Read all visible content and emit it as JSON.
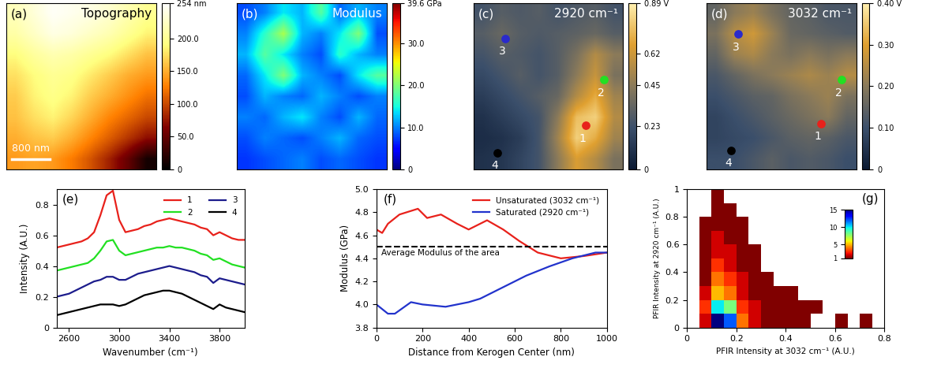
{
  "chart_data": [
    {
      "type": "heatmap",
      "panel": "(a)",
      "title": "Topography",
      "scale_bar": "800 nm",
      "cells": [
        [
          220,
          235,
          250,
          245,
          240,
          230,
          215,
          200
        ],
        [
          210,
          225,
          240,
          235,
          225,
          215,
          200,
          185
        ],
        [
          190,
          205,
          215,
          210,
          200,
          190,
          175,
          160
        ],
        [
          175,
          190,
          200,
          195,
          180,
          165,
          150,
          140
        ],
        [
          165,
          185,
          195,
          185,
          165,
          150,
          135,
          120
        ],
        [
          160,
          175,
          185,
          170,
          150,
          130,
          115,
          100
        ],
        [
          150,
          160,
          165,
          150,
          130,
          110,
          90,
          70
        ],
        [
          140,
          145,
          140,
          125,
          105,
          80,
          50,
          10
        ]
      ],
      "colorbar": {
        "range": [
          0,
          254
        ],
        "ticks": [
          0,
          {
            "value": 50,
            "label": "50.0"
          },
          {
            "value": 100,
            "label": "100.0"
          },
          {
            "value": 150,
            "label": "150.0"
          },
          {
            "value": 200,
            "label": "200.0"
          },
          {
            "value": 254,
            "label": "254 nm"
          }
        ]
      }
    },
    {
      "type": "heatmap",
      "panel": "(b)",
      "title": "Modulus",
      "cells": [
        [
          8,
          10,
          14,
          12,
          18,
          9,
          12,
          10
        ],
        [
          10,
          16,
          22,
          12,
          10,
          14,
          20,
          8
        ],
        [
          12,
          18,
          14,
          10,
          8,
          16,
          12,
          10
        ],
        [
          9,
          14,
          20,
          12,
          10,
          8,
          14,
          18
        ],
        [
          8,
          12,
          10,
          9,
          12,
          10,
          8,
          10
        ],
        [
          10,
          9,
          12,
          14,
          10,
          8,
          12,
          9
        ],
        [
          8,
          10,
          9,
          8,
          10,
          12,
          9,
          8
        ],
        [
          7,
          8,
          9,
          10,
          8,
          9,
          8,
          7
        ]
      ],
      "colorbar": {
        "range": [
          0,
          39.6
        ],
        "ticks": [
          0,
          {
            "value": 10,
            "label": "10.0"
          },
          {
            "value": 20,
            "label": "20.0"
          },
          {
            "value": 30,
            "label": "30.0"
          },
          {
            "value": 39.6,
            "label": "39.6 GPa"
          }
        ]
      }
    },
    {
      "type": "heatmap",
      "panel": "(c)",
      "title": "2920 cm⁻¹",
      "cells": [
        [
          0.25,
          0.3,
          0.28,
          0.3,
          0.25,
          0.28,
          0.3,
          0.25
        ],
        [
          0.3,
          0.35,
          0.3,
          0.28,
          0.3,
          0.32,
          0.35,
          0.3
        ],
        [
          0.25,
          0.3,
          0.28,
          0.25,
          0.3,
          0.4,
          0.55,
          0.45
        ],
        [
          0.2,
          0.25,
          0.3,
          0.25,
          0.3,
          0.45,
          0.6,
          0.4
        ],
        [
          0.15,
          0.2,
          0.25,
          0.3,
          0.35,
          0.55,
          0.7,
          0.5
        ],
        [
          0.1,
          0.15,
          0.2,
          0.25,
          0.45,
          0.75,
          0.8,
          0.55
        ],
        [
          0.08,
          0.1,
          0.15,
          0.25,
          0.5,
          0.8,
          0.7,
          0.5
        ],
        [
          0.1,
          0.12,
          0.18,
          0.25,
          0.45,
          0.65,
          0.55,
          0.4
        ]
      ],
      "points": [
        {
          "label": "1",
          "x": 6.0,
          "y": 5.9,
          "color": "#e8211b"
        },
        {
          "label": "2",
          "x": 7.0,
          "y": 3.7,
          "color": "#22e022"
        },
        {
          "label": "3",
          "x": 1.7,
          "y": 1.7,
          "color": "#2a2acc"
        },
        {
          "label": "4",
          "x": 1.3,
          "y": 7.2,
          "color": "#000000"
        }
      ],
      "colorbar": {
        "range": [
          0,
          0.89
        ],
        "ticks": [
          0,
          0.23,
          0.45,
          0.62,
          {
            "value": 0.89,
            "label": "0.89 V"
          }
        ]
      }
    },
    {
      "type": "heatmap",
      "panel": "(d)",
      "title": "3032 cm⁻¹",
      "cells": [
        [
          0.15,
          0.2,
          0.22,
          0.18,
          0.15,
          0.14,
          0.12,
          0.12
        ],
        [
          0.18,
          0.25,
          0.28,
          0.22,
          0.16,
          0.15,
          0.14,
          0.13
        ],
        [
          0.15,
          0.22,
          0.24,
          0.2,
          0.18,
          0.2,
          0.18,
          0.2
        ],
        [
          0.12,
          0.15,
          0.18,
          0.2,
          0.22,
          0.24,
          0.22,
          0.25
        ],
        [
          0.1,
          0.12,
          0.14,
          0.15,
          0.18,
          0.2,
          0.22,
          0.18
        ],
        [
          0.08,
          0.1,
          0.12,
          0.14,
          0.16,
          0.18,
          0.2,
          0.15
        ],
        [
          0.08,
          0.09,
          0.1,
          0.12,
          0.14,
          0.15,
          0.14,
          0.12
        ],
        [
          0.1,
          0.1,
          0.12,
          0.14,
          0.12,
          0.13,
          0.12,
          0.1
        ]
      ],
      "points": [
        {
          "label": "1",
          "x": 6.1,
          "y": 5.8,
          "color": "#e8211b"
        },
        {
          "label": "2",
          "x": 7.2,
          "y": 3.7,
          "color": "#22e022"
        },
        {
          "label": "3",
          "x": 1.7,
          "y": 1.5,
          "color": "#2a2acc"
        },
        {
          "label": "4",
          "x": 1.3,
          "y": 7.1,
          "color": "#000000"
        }
      ],
      "colorbar": {
        "range": [
          0,
          0.4
        ],
        "ticks": [
          0,
          {
            "value": 0.1,
            "label": "0.10"
          },
          {
            "value": 0.2,
            "label": "0.20"
          },
          {
            "value": 0.3,
            "label": "0.30"
          },
          {
            "value": 0.4,
            "label": "0.40 V"
          }
        ]
      }
    },
    {
      "type": "line",
      "panel": "(e)",
      "x_label": "Wavenumber (cm⁻¹)",
      "y_label": "Intensity (A.U.)",
      "x": [
        2500,
        2550,
        2600,
        2650,
        2700,
        2750,
        2800,
        2850,
        2900,
        2950,
        3000,
        3050,
        3100,
        3150,
        3200,
        3250,
        3300,
        3350,
        3400,
        3450,
        3500,
        3550,
        3600,
        3650,
        3700,
        3750,
        3800,
        3850,
        3900,
        3950,
        4000
      ],
      "series": [
        {
          "name": "1",
          "color": "#e8211b",
          "values": [
            0.52,
            0.53,
            0.54,
            0.55,
            0.56,
            0.58,
            0.62,
            0.73,
            0.86,
            0.89,
            0.7,
            0.62,
            0.63,
            0.64,
            0.66,
            0.67,
            0.69,
            0.7,
            0.71,
            0.7,
            0.69,
            0.68,
            0.67,
            0.65,
            0.64,
            0.6,
            0.62,
            0.6,
            0.58,
            0.57,
            0.57
          ]
        },
        {
          "name": "2",
          "color": "#22e022",
          "values": [
            0.37,
            0.38,
            0.39,
            0.4,
            0.41,
            0.42,
            0.45,
            0.5,
            0.56,
            0.57,
            0.5,
            0.47,
            0.48,
            0.49,
            0.5,
            0.51,
            0.52,
            0.52,
            0.53,
            0.52,
            0.52,
            0.51,
            0.5,
            0.48,
            0.47,
            0.44,
            0.45,
            0.43,
            0.41,
            0.4,
            0.39
          ]
        },
        {
          "name": "3",
          "color": "#1c1c8c",
          "values": [
            0.2,
            0.21,
            0.22,
            0.24,
            0.26,
            0.28,
            0.3,
            0.31,
            0.33,
            0.33,
            0.31,
            0.31,
            0.33,
            0.35,
            0.36,
            0.37,
            0.38,
            0.39,
            0.4,
            0.39,
            0.38,
            0.37,
            0.36,
            0.34,
            0.33,
            0.29,
            0.32,
            0.31,
            0.3,
            0.29,
            0.28
          ]
        },
        {
          "name": "4",
          "color": "#000000",
          "values": [
            0.08,
            0.09,
            0.1,
            0.11,
            0.12,
            0.13,
            0.14,
            0.15,
            0.15,
            0.15,
            0.14,
            0.15,
            0.17,
            0.19,
            0.21,
            0.22,
            0.23,
            0.24,
            0.24,
            0.23,
            0.22,
            0.2,
            0.18,
            0.16,
            0.14,
            0.12,
            0.15,
            0.13,
            0.12,
            0.11,
            0.1
          ]
        }
      ],
      "xlim": [
        2500,
        4000
      ],
      "xticks": [
        2600,
        3000,
        3400,
        3800
      ],
      "ylim": [
        0,
        0.9
      ],
      "yticks": [
        0,
        0.2,
        0.4,
        0.6,
        0.8
      ],
      "legend": "upper right"
    },
    {
      "type": "line",
      "panel": "(f)",
      "x_label": "Distance from Kerogen Center (nm)",
      "y_label": "Modulus (GPa)",
      "series": [
        {
          "name": "Unsaturated (3032 cm⁻¹)",
          "color": "#e8211b",
          "x": [
            0,
            25,
            50,
            100,
            180,
            220,
            280,
            350,
            400,
            480,
            550,
            620,
            700,
            800,
            900,
            1000
          ],
          "values": [
            4.65,
            4.62,
            4.7,
            4.78,
            4.83,
            4.75,
            4.78,
            4.7,
            4.65,
            4.73,
            4.65,
            4.55,
            4.45,
            4.4,
            4.42,
            4.45
          ]
        },
        {
          "name": "Saturated (2920 cm⁻¹)",
          "color": "#2233cc",
          "x": [
            0,
            50,
            80,
            150,
            200,
            300,
            400,
            450,
            550,
            650,
            750,
            850,
            950,
            1000
          ],
          "values": [
            4.0,
            3.92,
            3.92,
            4.02,
            4.0,
            3.98,
            4.02,
            4.05,
            4.15,
            4.25,
            4.33,
            4.4,
            4.45,
            4.45
          ]
        }
      ],
      "reference": {
        "value": 4.5,
        "label": "Average Modulus of the area",
        "line_style": "dashed"
      },
      "xlim": [
        0,
        1000
      ],
      "xticks": [
        0,
        200,
        400,
        600,
        800,
        1000
      ],
      "ylim": [
        3.8,
        5.0
      ],
      "yticks": [
        3.8,
        4.0,
        4.2,
        4.4,
        4.6,
        4.8,
        5.0
      ],
      "legend": "upper right"
    },
    {
      "type": "density",
      "panel": "(g)",
      "x_label": "PFIR Intensity at 3032 cm⁻¹ (A.U.)",
      "y_label": "PFIR Intensity at 2920 cm⁻¹ (A.U.)",
      "bins_x": [
        0,
        0.05,
        0.1,
        0.15,
        0.2,
        0.25,
        0.3,
        0.35,
        0.4,
        0.45,
        0.5,
        0.55,
        0.6,
        0.65,
        0.7,
        0.75,
        0.8
      ],
      "bins_y": [
        0,
        0.1,
        0.2,
        0.3,
        0.4,
        0.5,
        0.6,
        0.7,
        0.8,
        0.9,
        1.0
      ],
      "counts": [
        [
          0,
          2,
          15,
          12,
          4,
          2,
          1,
          1,
          1,
          1,
          0,
          0,
          1,
          0,
          1,
          0
        ],
        [
          0,
          3,
          10,
          8,
          3,
          2,
          1,
          1,
          1,
          1,
          1,
          0,
          0,
          0,
          0,
          0
        ],
        [
          0,
          2,
          5,
          4,
          2,
          1,
          1,
          1,
          1,
          0,
          0,
          0,
          0,
          0,
          0,
          0
        ],
        [
          0,
          1,
          4,
          3,
          2,
          1,
          1,
          0,
          0,
          0,
          0,
          0,
          0,
          0,
          0,
          0
        ],
        [
          0,
          1,
          3,
          2,
          1,
          1,
          0,
          0,
          0,
          0,
          0,
          0,
          0,
          0,
          0,
          0
        ],
        [
          0,
          1,
          2,
          2,
          1,
          1,
          0,
          0,
          0,
          0,
          0,
          0,
          0,
          0,
          0,
          0
        ],
        [
          0,
          1,
          2,
          1,
          1,
          0,
          0,
          0,
          0,
          0,
          0,
          0,
          0,
          0,
          0,
          0
        ],
        [
          0,
          1,
          1,
          1,
          1,
          0,
          0,
          0,
          0,
          0,
          0,
          0,
          0,
          0,
          0,
          0
        ],
        [
          0,
          0,
          1,
          1,
          0,
          0,
          0,
          0,
          0,
          0,
          0,
          0,
          0,
          0,
          0,
          0
        ],
        [
          0,
          0,
          1,
          0,
          0,
          0,
          0,
          0,
          0,
          0,
          0,
          0,
          0,
          0,
          0,
          0
        ]
      ],
      "xlim": [
        0,
        0.8
      ],
      "xticks": [
        0,
        0.2,
        0.4,
        0.6,
        0.8
      ],
      "ylim": [
        0,
        1
      ],
      "yticks": [
        0,
        0.2,
        0.4,
        0.6,
        0.8,
        1
      ],
      "colorbar": {
        "range": [
          1,
          15
        ],
        "ticks": [
          1,
          5,
          10,
          15
        ]
      }
    }
  ]
}
